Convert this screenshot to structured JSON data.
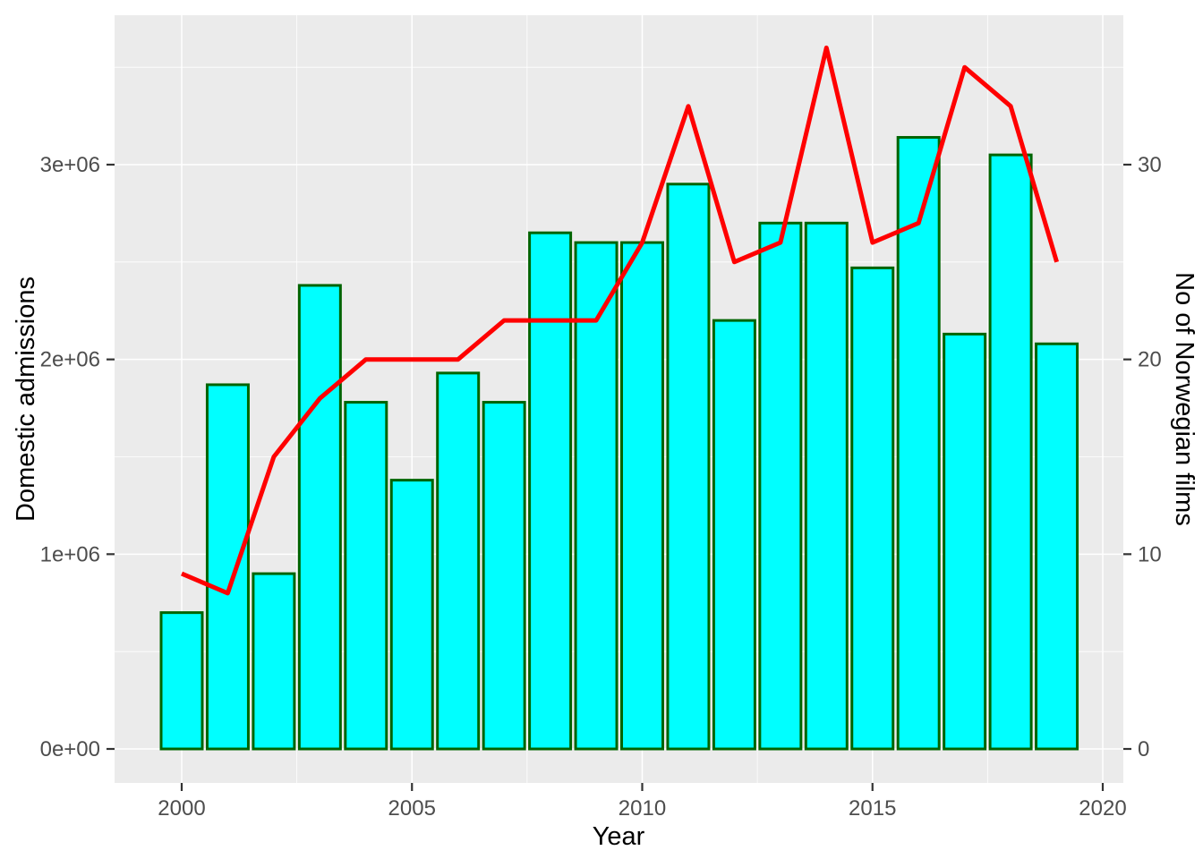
{
  "chart_data": {
    "type": "bar",
    "title": "",
    "x": [
      2000,
      2001,
      2002,
      2003,
      2004,
      2005,
      2006,
      2007,
      2008,
      2009,
      2010,
      2011,
      2012,
      2013,
      2014,
      2015,
      2016,
      2017,
      2018,
      2019
    ],
    "series": [
      {
        "name": "Domestic admissions",
        "type": "bar",
        "yaxis": "left",
        "fill": "#00FFFF",
        "stroke": "#006400",
        "values": [
          700000,
          1870000,
          900000,
          2380000,
          1780000,
          1380000,
          1930000,
          1780000,
          2650000,
          2600000,
          2600000,
          2900000,
          2200000,
          2700000,
          2700000,
          2470000,
          3140000,
          2130000,
          3050000,
          2080000
        ]
      },
      {
        "name": "No of Norwegian films",
        "type": "line",
        "yaxis": "right",
        "color": "#FF0000",
        "values": [
          9,
          8,
          15,
          18,
          20,
          20,
          20,
          22,
          22,
          22,
          26,
          33,
          25,
          26,
          36,
          26,
          27,
          35,
          33,
          25
        ]
      }
    ],
    "xlabel": "Year",
    "ylabel_left": "Domestic admissions",
    "ylabel_right": "No of Norwegian films",
    "x_axis": {
      "tick_values": [
        2000,
        2005,
        2010,
        2015,
        2020
      ],
      "tick_labels": [
        "2000",
        "2005",
        "2010",
        "2015",
        "2020"
      ],
      "minor_values": [
        2002.5,
        2007.5,
        2012.5,
        2017.5
      ]
    },
    "y_left_axis": {
      "tick_values": [
        0,
        1000000,
        2000000,
        3000000
      ],
      "tick_labels": [
        "0e+00",
        "1e+06",
        "2e+06",
        "3e+06"
      ],
      "minor_values": [
        500000,
        1500000,
        2500000,
        3500000
      ],
      "range": [
        0,
        3760000
      ]
    },
    "y_right_axis": {
      "tick_values": [
        0,
        10,
        20,
        30
      ],
      "tick_labels": [
        "0",
        "10",
        "20",
        "30"
      ],
      "range": [
        0,
        37.6
      ]
    },
    "grid": true,
    "legend_position": "none",
    "colors": {
      "panel_bg": "#EBEBEB",
      "grid": "#FFFFFF",
      "bar_fill": "#00FFFF",
      "bar_stroke": "#006400",
      "line": "#FF0000",
      "axis_text": "#4D4D4D",
      "axis_title": "#000000",
      "tick_mark": "#333333"
    }
  }
}
